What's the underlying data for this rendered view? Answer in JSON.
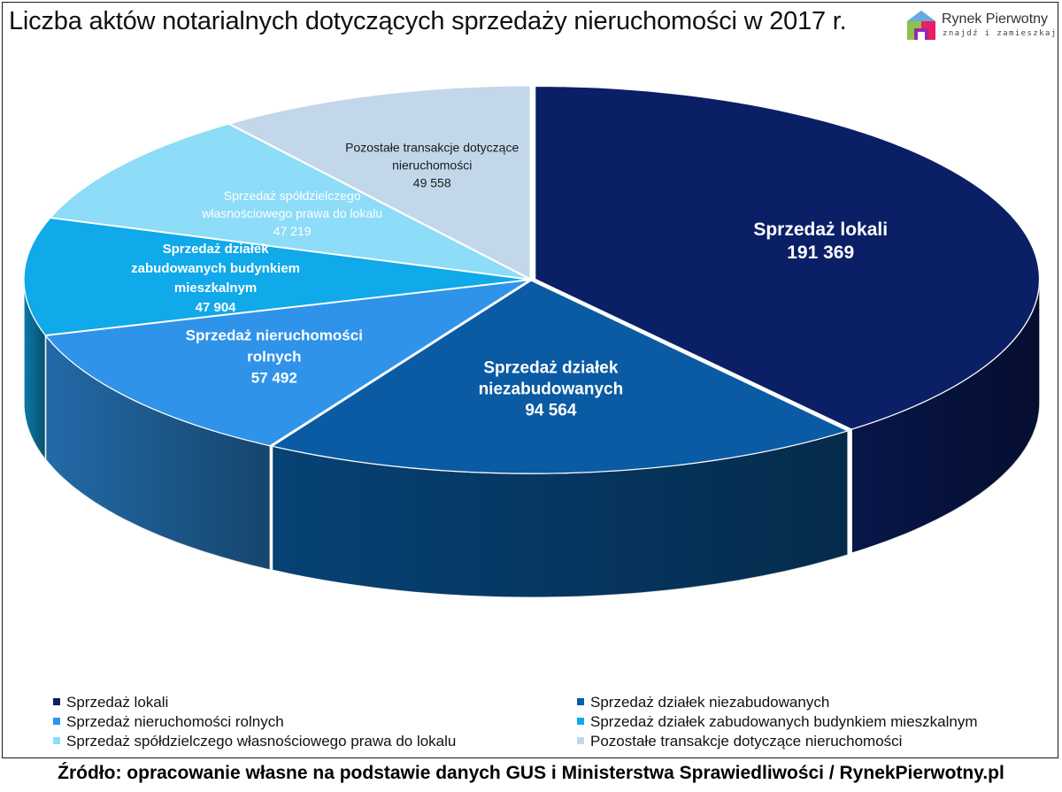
{
  "title": "Liczba aktów notarialnych dotyczących sprzedaży nieruchomości w 2017 r.",
  "logo": {
    "name": "Rynek Pierwotny",
    "tagline": "znajdź i zamieszkaj",
    "colors": [
      "#5b9bd5",
      "#8bc34a",
      "#e91e63",
      "#9c27b0"
    ]
  },
  "chart_data": {
    "type": "pie",
    "style": "3d-exploded",
    "title": "Liczba aktów notarialnych dotyczących sprzedaży nieruchomości w 2017 r.",
    "legend_position": "bottom",
    "slices": [
      {
        "name": "Sprzedaż lokali",
        "value": 191369,
        "value_label": "191 369",
        "label_lines": [
          "Sprzedaż lokali"
        ],
        "color": "#0b1f66",
        "label_color": "#ffffff"
      },
      {
        "name": "Sprzedaż działek niezabudowanych",
        "value": 94564,
        "value_label": "94 564",
        "label_lines": [
          "Sprzedaż działek",
          "niezabudowanych"
        ],
        "color": "#0a5ba3",
        "label_color": "#ffffff"
      },
      {
        "name": "Sprzedaż nieruchomości rolnych",
        "value": 57492,
        "value_label": "57 492",
        "label_lines": [
          "Sprzedaż nieruchomości",
          "rolnych"
        ],
        "color": "#2f93ea",
        "label_color": "#ffffff"
      },
      {
        "name": "Sprzedaż działek zabudowanych budynkiem mieszkalnym",
        "value": 47904,
        "value_label": "47 904",
        "label_lines": [
          "Sprzedaż działek",
          "zabudowanych budynkiem",
          "mieszkalnym"
        ],
        "color": "#10a9ea",
        "label_color": "#ffffff"
      },
      {
        "name": "Sprzedaż spółdzielczego własnościowego prawa do lokalu",
        "value": 47219,
        "value_label": "47 219",
        "label_lines": [
          "Sprzedaż spółdzielczego",
          "własnościowego prawa do lokalu"
        ],
        "color": "#8ddcf8",
        "label_color": "#ffffff"
      },
      {
        "name": "Pozostałe transakcje dotyczące nieruchomości",
        "value": 49558,
        "value_label": "49 558",
        "label_lines": [
          "Pozostałe transakcje dotyczące",
          "nieruchomości"
        ],
        "color": "#c3d7ea",
        "label_color": "#1a1a1a"
      }
    ]
  },
  "source": "Źródło: opracowanie własne na podstawie danych GUS i Ministerstwa Sprawiedliwości / RynekPierwotny.pl"
}
